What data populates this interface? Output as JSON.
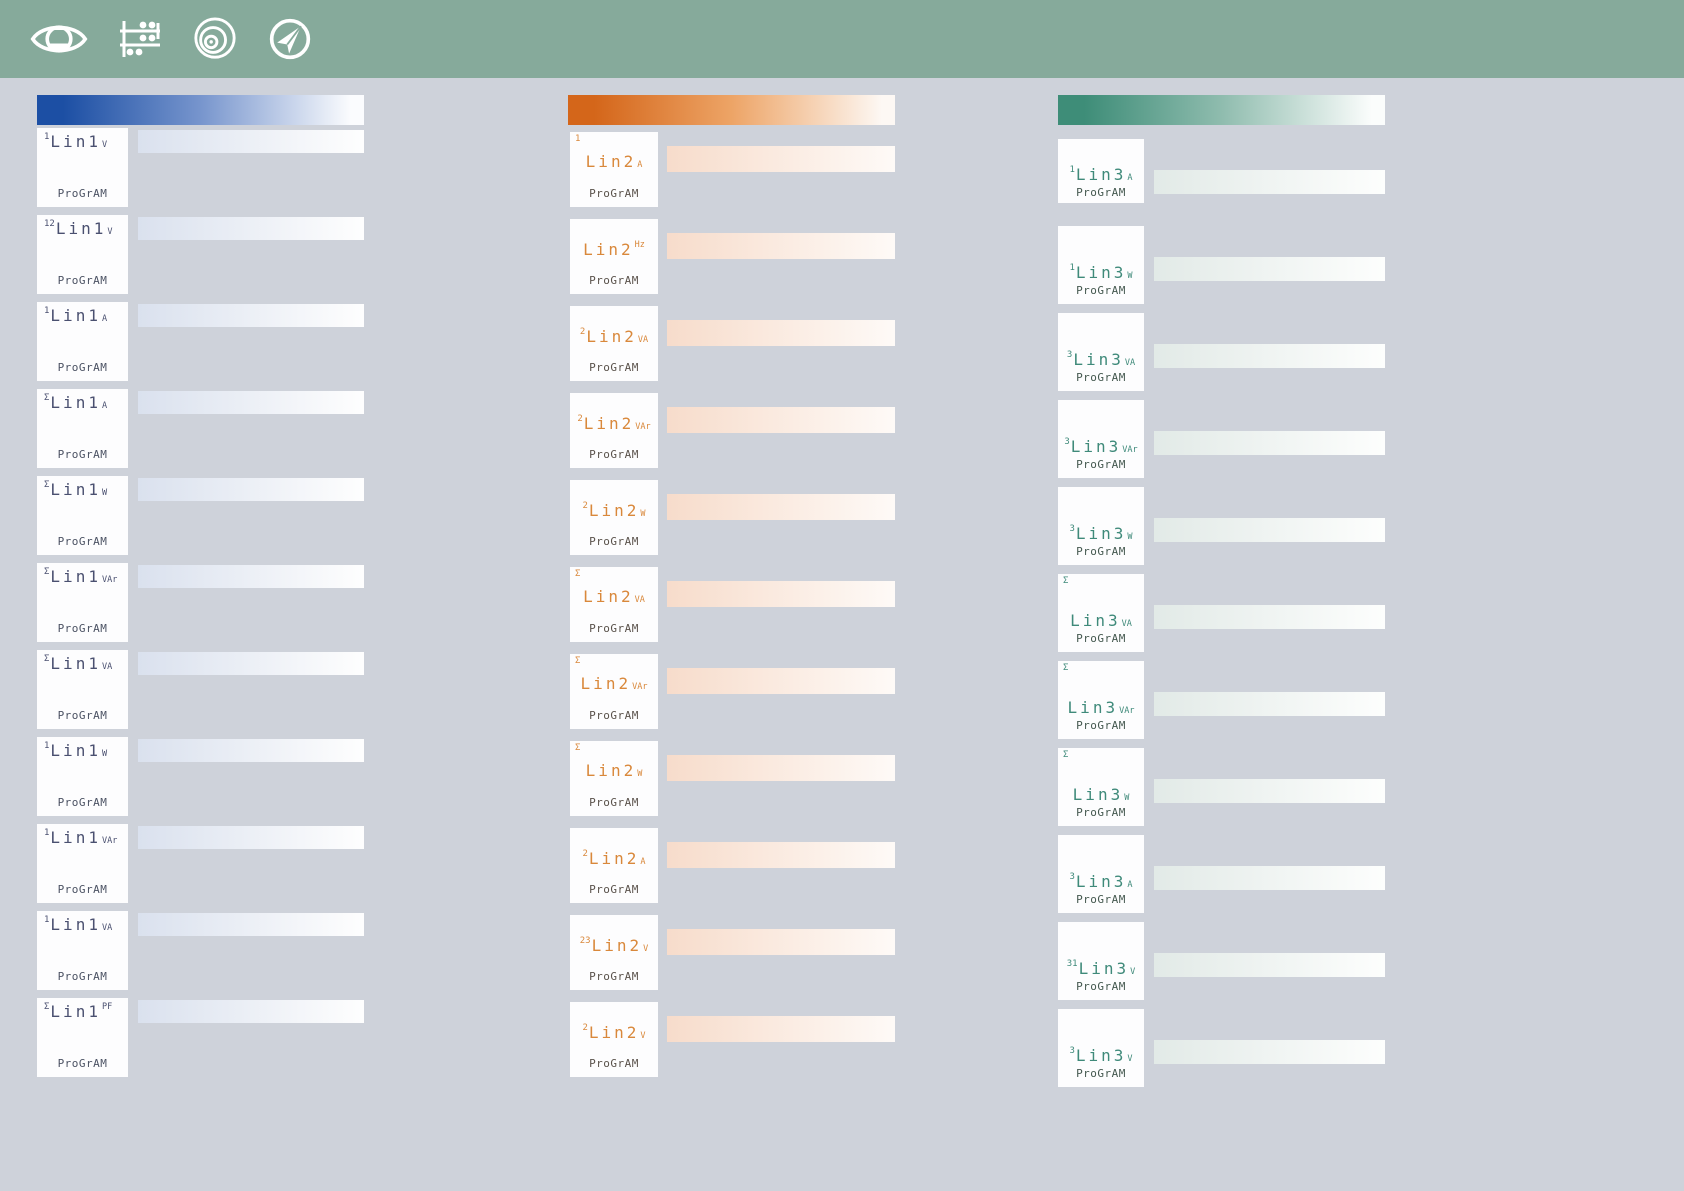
{
  "page": {
    "background": "#ced2da"
  },
  "toolbar": {
    "background": "#86aa9b",
    "icon_color": "#ffffff",
    "icons": [
      {
        "name": "eye-logo-icon"
      },
      {
        "name": "abacus-icon"
      },
      {
        "name": "lens-circles-icon"
      },
      {
        "name": "send-icon"
      }
    ]
  },
  "columns": [
    {
      "name": "line-1",
      "accent": "#1c4fa4",
      "header_gradient_start": "#1c4fa4",
      "header_gradient_mid": "#7795cd",
      "header_gradient_end": "#fbfcfe",
      "bar_gradient_start": "#dae1ee",
      "bar_gradient_end": "#fefefe",
      "display_color": "#4a5070",
      "program_color": "#4b5263",
      "program_label": "ProGrAM",
      "cards": [
        {
          "prefix": "1",
          "label": "Lin1",
          "unit": "V"
        },
        {
          "prefix": "12",
          "label": "Lin1",
          "unit": "V"
        },
        {
          "prefix": "1",
          "label": "Lin1",
          "unit": "A"
        },
        {
          "prefix": "Σ",
          "label": "Lin1",
          "unit": "A"
        },
        {
          "prefix": "Σ",
          "label": "Lin1",
          "unit": "W"
        },
        {
          "prefix": "Σ",
          "label": "Lin1",
          "unit": "VAr"
        },
        {
          "prefix": "Σ",
          "label": "Lin1",
          "unit": "VA"
        },
        {
          "prefix": "1",
          "label": "Lin1",
          "unit": "W"
        },
        {
          "prefix": "1",
          "label": "Lin1",
          "unit": "VAr"
        },
        {
          "prefix": "1",
          "label": "Lin1",
          "unit": "VA"
        },
        {
          "prefix": "Σ",
          "label": "Lin1",
          "unit": "PF",
          "unit_style": "sup"
        }
      ]
    },
    {
      "name": "line-2",
      "accent": "#d4661a",
      "header_gradient_start": "#d4661a",
      "header_gradient_mid": "#eda466",
      "header_gradient_end": "#fdf8f4",
      "bar_gradient_start": "#f7dccb",
      "bar_gradient_end": "#fefaf7",
      "display_color": "#d9883b",
      "program_color": "#5a524b",
      "program_label": "ProGrAM",
      "cards": [
        {
          "prefix": "1",
          "corner": true,
          "label": "Lin2",
          "unit": "A"
        },
        {
          "prefix": "",
          "label": "Lin2",
          "unit": "Hz",
          "unit_style": "sup"
        },
        {
          "prefix": "2",
          "label": "Lin2",
          "unit": "VA"
        },
        {
          "prefix": "2",
          "label": "Lin2",
          "unit": "VAr"
        },
        {
          "prefix": "2",
          "label": "Lin2",
          "unit": "W"
        },
        {
          "prefix": "Σ",
          "corner": true,
          "label": "Lin2",
          "unit": "VA"
        },
        {
          "prefix": "Σ",
          "corner": true,
          "label": "Lin2",
          "unit": "VAr"
        },
        {
          "prefix": "Σ",
          "corner": true,
          "label": "Lin2",
          "unit": "W"
        },
        {
          "prefix": "2",
          "label": "Lin2",
          "unit": "A"
        },
        {
          "prefix": "23",
          "label": "Lin2",
          "unit": "V"
        },
        {
          "prefix": "2",
          "label": "Lin2",
          "unit": "V"
        }
      ]
    },
    {
      "name": "line-3",
      "accent": "#3e8d78",
      "header_gradient_start": "#3e8d78",
      "header_gradient_mid": "#8fbcae",
      "header_gradient_end": "#fbfdfc",
      "bar_gradient_start": "#e2eae7",
      "bar_gradient_end": "#fdfefd",
      "display_color": "#3f8a7a",
      "program_color": "#44584f",
      "program_label": "ProGrAM",
      "cards": [
        {
          "prefix": "1",
          "label": "Lin3",
          "unit": "A"
        },
        {
          "prefix": "1",
          "label": "Lin3",
          "unit": "W"
        },
        {
          "prefix": "3",
          "label": "Lin3",
          "unit": "VA"
        },
        {
          "prefix": "3",
          "label": "Lin3",
          "unit": "VAr"
        },
        {
          "prefix": "3",
          "label": "Lin3",
          "unit": "W"
        },
        {
          "prefix": "Σ",
          "corner": true,
          "label": "Lin3",
          "unit": "VA"
        },
        {
          "prefix": "Σ",
          "corner": true,
          "label": "Lin3",
          "unit": "VAr"
        },
        {
          "prefix": "Σ",
          "corner": true,
          "label": "Lin3",
          "unit": "W"
        },
        {
          "prefix": "3",
          "label": "Lin3",
          "unit": "A"
        },
        {
          "prefix": "31",
          "label": "Lin3",
          "unit": "V"
        },
        {
          "prefix": "3",
          "label": "Lin3",
          "unit": "V"
        }
      ]
    }
  ]
}
